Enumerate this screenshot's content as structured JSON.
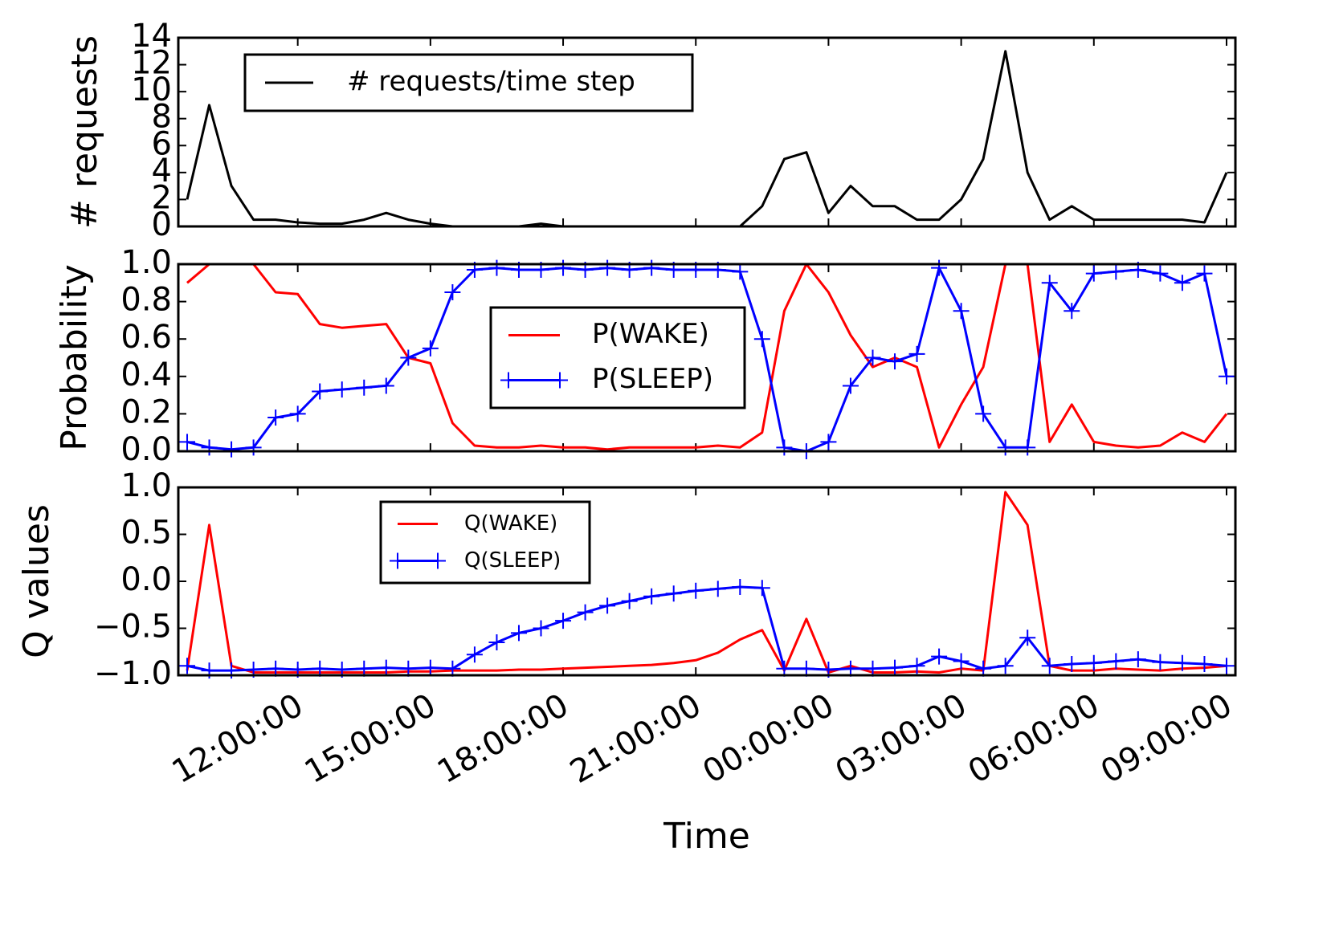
{
  "chart_data": [
    {
      "type": "line",
      "ylabel": "# requests",
      "legend": "upper left",
      "xlim": [
        9.3,
        33.2
      ],
      "x": [
        9.5,
        10,
        10.5,
        11,
        11.5,
        12,
        12.5,
        13,
        13.5,
        14,
        14.5,
        15,
        15.5,
        16,
        16.5,
        17,
        17.5,
        18,
        18.5,
        19,
        19.5,
        20,
        20.5,
        21,
        21.5,
        22,
        22.5,
        23,
        23.5,
        24,
        24.5,
        25,
        25.5,
        26,
        26.5,
        27,
        27.5,
        28,
        28.5,
        29,
        29.5,
        30,
        30.5,
        31,
        31.5,
        32,
        32.5,
        33
      ],
      "ylim": [
        0,
        14
      ],
      "yticks": [
        0,
        2,
        4,
        6,
        8,
        10,
        12,
        14
      ],
      "series": [
        {
          "name": "# requests/time step",
          "color": "#000000",
          "values": [
            2,
            9,
            3,
            0.5,
            0.5,
            0.3,
            0.2,
            0.2,
            0.5,
            1,
            0.5,
            0.2,
            0,
            0,
            0,
            0,
            0.2,
            0,
            0,
            0,
            0,
            0,
            0,
            0,
            0,
            0,
            1.5,
            5,
            5.5,
            1,
            3,
            1.5,
            1.5,
            0.5,
            0.5,
            2,
            5,
            13,
            4,
            0.5,
            1.5,
            0.5,
            0.5,
            0.5,
            0.5,
            0.5,
            0.3,
            4
          ]
        }
      ]
    },
    {
      "type": "line",
      "ylabel": "Probability",
      "legend": "center",
      "xlim": [
        9.3,
        33.2
      ],
      "x": [
        9.5,
        10,
        10.5,
        11,
        11.5,
        12,
        12.5,
        13,
        13.5,
        14,
        14.5,
        15,
        15.5,
        16,
        16.5,
        17,
        17.5,
        18,
        18.5,
        19,
        19.5,
        20,
        20.5,
        21,
        21.5,
        22,
        22.5,
        23,
        23.5,
        24,
        24.5,
        25,
        25.5,
        26,
        26.5,
        27,
        27.5,
        28,
        28.5,
        29,
        29.5,
        30,
        30.5,
        31,
        31.5,
        32,
        32.5,
        33
      ],
      "ylim": [
        0,
        1
      ],
      "yticks": [
        {
          "value": 0,
          "label": "0.0"
        },
        0.2,
        0.4,
        0.6,
        0.8,
        {
          "value": 1,
          "label": "1.0"
        }
      ],
      "series": [
        {
          "name": "P(WAKE)",
          "color": "#ff0000",
          "values": [
            0.9,
            1,
            1,
            1,
            0.85,
            0.84,
            0.68,
            0.66,
            0.67,
            0.68,
            0.5,
            0.47,
            0.15,
            0.03,
            0.02,
            0.02,
            0.03,
            0.02,
            0.02,
            0.01,
            0.02,
            0.02,
            0.02,
            0.02,
            0.03,
            0.02,
            0.1,
            0.75,
            1,
            0.85,
            0.62,
            0.45,
            0.5,
            0.45,
            0.02,
            0.25,
            0.45,
            1,
            1,
            0.05,
            0.25,
            0.05,
            0.03,
            0.02,
            0.03,
            0.1,
            0.05,
            0.2
          ]
        },
        {
          "name": "P(SLEEP)",
          "color": "#0000ff",
          "marker": "+",
          "values": [
            0.05,
            0.02,
            0.01,
            0.02,
            0.18,
            0.2,
            0.32,
            0.33,
            0.34,
            0.35,
            0.5,
            0.55,
            0.85,
            0.97,
            0.98,
            0.97,
            0.97,
            0.98,
            0.97,
            0.98,
            0.97,
            0.98,
            0.97,
            0.97,
            0.97,
            0.96,
            0.6,
            0.02,
            0,
            0.05,
            0.35,
            0.5,
            0.48,
            0.52,
            0.98,
            0.75,
            0.2,
            0.02,
            0.02,
            0.9,
            0.75,
            0.95,
            0.96,
            0.97,
            0.95,
            0.9,
            0.95,
            0.4
          ]
        }
      ]
    },
    {
      "type": "line",
      "ylabel": "Q values",
      "xlabel": "Time",
      "legend": "upper left",
      "xlim": [
        9.3,
        33.2
      ],
      "xticks": [
        {
          "value": 12,
          "label": "12:00:00"
        },
        {
          "value": 15,
          "label": "15:00:00"
        },
        {
          "value": 18,
          "label": "18:00:00"
        },
        {
          "value": 21,
          "label": "21:00:00"
        },
        {
          "value": 24,
          "label": "00:00:00"
        },
        {
          "value": 27,
          "label": "03:00:00"
        },
        {
          "value": 30,
          "label": "06:00:00"
        },
        {
          "value": 33,
          "label": "09:00:00"
        }
      ],
      "x": [
        9.5,
        10,
        10.5,
        11,
        11.5,
        12,
        12.5,
        13,
        13.5,
        14,
        14.5,
        15,
        15.5,
        16,
        16.5,
        17,
        17.5,
        18,
        18.5,
        19,
        19.5,
        20,
        20.5,
        21,
        21.5,
        22,
        22.5,
        23,
        23.5,
        24,
        24.5,
        25,
        25.5,
        26,
        26.5,
        27,
        27.5,
        28,
        28.5,
        29,
        29.5,
        30,
        30.5,
        31,
        31.5,
        32,
        32.5,
        33
      ],
      "ylim": [
        -1,
        1
      ],
      "yticks": [
        {
          "value": -1,
          "label": "−1.0"
        },
        {
          "value": -0.5,
          "label": "−0.5"
        },
        {
          "value": 0,
          "label": "0.0"
        },
        0.5,
        {
          "value": 1,
          "label": "1.0"
        }
      ],
      "series": [
        {
          "name": "Q(WAKE)",
          "color": "#ff0000",
          "values": [
            -0.95,
            0.6,
            -0.9,
            -0.97,
            -0.97,
            -0.97,
            -0.97,
            -0.97,
            -0.97,
            -0.97,
            -0.96,
            -0.96,
            -0.95,
            -0.95,
            -0.95,
            -0.94,
            -0.94,
            -0.93,
            -0.92,
            -0.91,
            -0.9,
            -0.89,
            -0.87,
            -0.84,
            -0.76,
            -0.62,
            -0.52,
            -0.95,
            -0.4,
            -0.97,
            -0.9,
            -0.97,
            -0.97,
            -0.96,
            -0.97,
            -0.93,
            -0.95,
            0.95,
            0.6,
            -0.9,
            -0.95,
            -0.95,
            -0.93,
            -0.94,
            -0.95,
            -0.93,
            -0.92,
            -0.9
          ]
        },
        {
          "name": "Q(SLEEP)",
          "color": "#0000ff",
          "marker": "+",
          "values": [
            -0.9,
            -0.95,
            -0.95,
            -0.94,
            -0.93,
            -0.94,
            -0.93,
            -0.94,
            -0.93,
            -0.92,
            -0.93,
            -0.92,
            -0.93,
            -0.78,
            -0.65,
            -0.55,
            -0.5,
            -0.42,
            -0.33,
            -0.26,
            -0.21,
            -0.16,
            -0.13,
            -0.1,
            -0.08,
            -0.06,
            -0.07,
            -0.93,
            -0.93,
            -0.94,
            -0.93,
            -0.93,
            -0.92,
            -0.9,
            -0.8,
            -0.85,
            -0.93,
            -0.9,
            -0.6,
            -0.9,
            -0.88,
            -0.87,
            -0.85,
            -0.83,
            -0.86,
            -0.87,
            -0.88,
            -0.9
          ]
        }
      ]
    }
  ]
}
